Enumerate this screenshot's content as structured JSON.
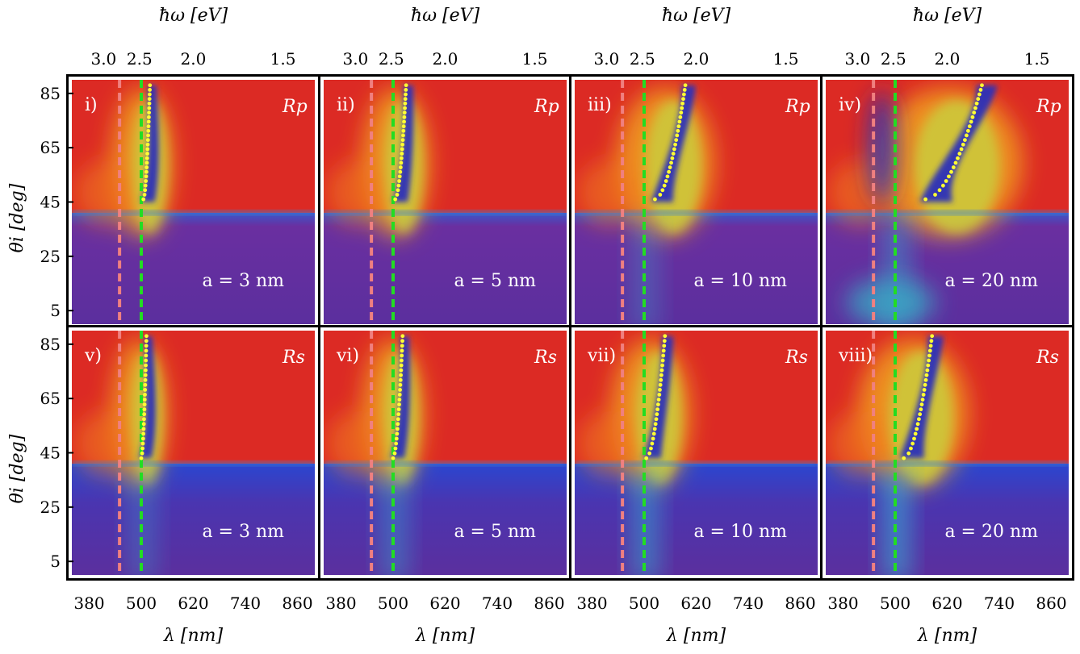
{
  "axes": {
    "top_label": "ħω [eV]",
    "top_ticks": [
      "3.0",
      "2.5",
      "2.0",
      "1.5"
    ],
    "top_tick_values_ev": [
      3.0,
      2.5,
      2.0,
      1.5
    ],
    "bottom_label": "λ [nm]",
    "bottom_ticks": [
      "380",
      "500",
      "620",
      "740",
      "860"
    ],
    "bottom_tick_values_nm": [
      380,
      500,
      620,
      740,
      860
    ],
    "left_label": "θi [deg]",
    "left_ticks": [
      "85",
      "65",
      "45",
      "25",
      "5"
    ],
    "left_tick_values_deg": [
      85,
      65,
      45,
      25,
      5
    ]
  },
  "chart_data": {
    "type": "heatmap",
    "xlabel": "λ [nm]",
    "ylabel": "θi [deg]",
    "x2label": "ħω [eV]",
    "xlim": [
      340,
      900
    ],
    "ylim": [
      0,
      90
    ],
    "critical_angle_deg": 41,
    "vertical_lines": [
      {
        "color": "#f08080",
        "lambda_nm": 450,
        "style": "dashed"
      },
      {
        "color": "#22dd22",
        "lambda_nm": 500,
        "style": "dashed"
      }
    ],
    "panels": [
      {
        "label": "i)",
        "quantity": "Rp",
        "radius": "a = 3 nm",
        "dip_lambda_nm": [
          505,
          520
        ],
        "dip_width": 1.0
      },
      {
        "label": "ii)",
        "quantity": "Rp",
        "radius": "a = 5 nm",
        "dip_lambda_nm": [
          505,
          530
        ],
        "dip_width": 1.1
      },
      {
        "label": "iii)",
        "quantity": "Rp",
        "radius": "a = 10 nm",
        "dip_lambda_nm": [
          525,
          595
        ],
        "dip_width": 1.6
      },
      {
        "label": "iv)",
        "quantity": "Rp",
        "radius": "a = 20 nm",
        "dip_lambda_nm": [
          570,
          700
        ],
        "dip_width": 2.4
      },
      {
        "label": "v)",
        "quantity": "Rs",
        "radius": "a = 3 nm",
        "dip_lambda_nm": [
          500,
          512
        ],
        "dip_width": 0.9
      },
      {
        "label": "vi)",
        "quantity": "Rs",
        "radius": "a = 5 nm",
        "dip_lambda_nm": [
          500,
          522
        ],
        "dip_width": 1.0
      },
      {
        "label": "vii)",
        "quantity": "Rs",
        "radius": "a = 10 nm",
        "dip_lambda_nm": [
          505,
          548
        ],
        "dip_width": 1.3
      },
      {
        "label": "viii)",
        "quantity": "Rs",
        "radius": "a = 20 nm",
        "dip_lambda_nm": [
          520,
          585
        ],
        "dip_width": 1.8
      }
    ]
  },
  "colors": {
    "high": "#dc2a24",
    "low": "#5b2f9e",
    "dip": "#2a2fb8",
    "trace": "#ffff33"
  }
}
